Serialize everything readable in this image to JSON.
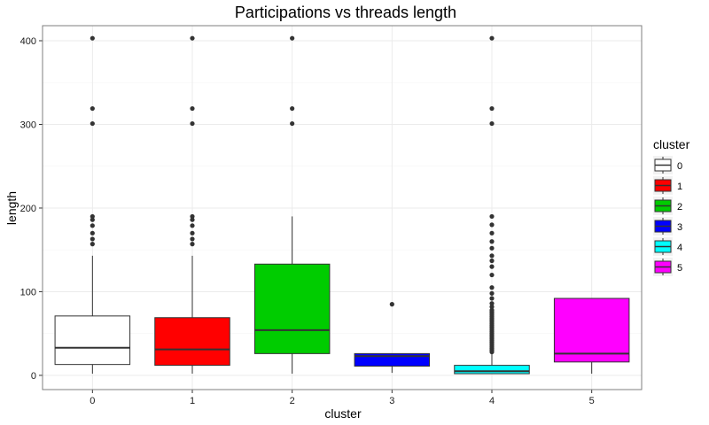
{
  "chart_data": {
    "type": "box",
    "title": "Participations vs threads length",
    "xlabel": "cluster",
    "ylabel": "length",
    "ylim": [
      -17,
      418
    ],
    "yticks": [
      0,
      100,
      200,
      300,
      400
    ],
    "grid": true,
    "legend": {
      "title": "cluster",
      "position": "right"
    },
    "categories": [
      "0",
      "1",
      "2",
      "3",
      "4",
      "5"
    ],
    "series": [
      {
        "name": "0",
        "color": "#ffffff",
        "min": 2,
        "q1": 13,
        "median": 33,
        "q3": 71,
        "max": 143,
        "outliers": [
          157,
          163,
          170,
          179,
          186,
          190,
          301,
          319,
          403
        ]
      },
      {
        "name": "1",
        "color": "#ff0000",
        "min": 2,
        "q1": 12,
        "median": 31,
        "q3": 69,
        "max": 143,
        "outliers": [
          157,
          163,
          170,
          179,
          186,
          190,
          301,
          319,
          403
        ]
      },
      {
        "name": "2",
        "color": "#00cc00",
        "min": 2,
        "q1": 26,
        "median": 54,
        "q3": 133,
        "max": 190,
        "outliers": [
          301,
          319,
          403
        ]
      },
      {
        "name": "3",
        "color": "#0000ff",
        "min": 3,
        "q1": 11,
        "median": 23,
        "q3": 26,
        "max": 26,
        "outliers": [
          85
        ]
      },
      {
        "name": "4",
        "color": "#00ffff",
        "min": 2,
        "q1": 2,
        "median": 5,
        "q3": 12,
        "max": 26,
        "outliers": [
          28,
          30,
          32,
          34,
          36,
          38,
          40,
          42,
          44,
          46,
          48,
          50,
          52,
          54,
          56,
          58,
          60,
          62,
          64,
          66,
          68,
          70,
          72,
          74,
          76,
          78,
          82,
          86,
          92,
          98,
          105,
          120,
          130,
          137,
          143,
          152,
          160,
          170,
          180,
          190,
          301,
          319,
          403
        ]
      },
      {
        "name": "5",
        "color": "#ff00ff",
        "min": 2,
        "q1": 16,
        "median": 26,
        "q3": 92,
        "max": 92,
        "outliers": []
      }
    ]
  }
}
